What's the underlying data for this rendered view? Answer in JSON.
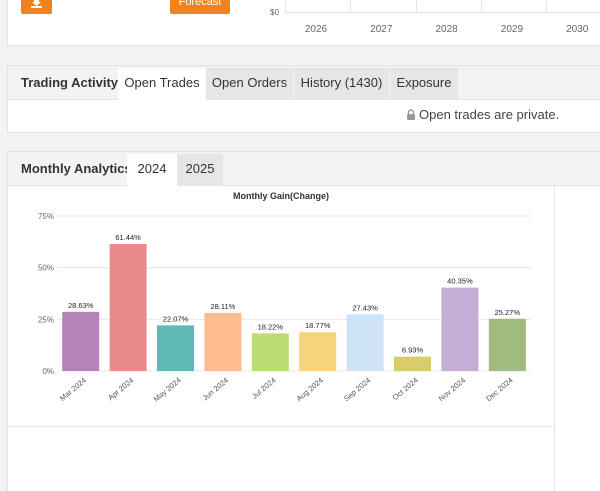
{
  "top": {
    "forecast_label": "Forecast",
    "y_label": "$0",
    "years": [
      "2026",
      "2027",
      "2028",
      "2029",
      "2030"
    ]
  },
  "trading": {
    "title": "Trading Activity",
    "tabs": [
      {
        "label": "Open Trades",
        "active": true
      },
      {
        "label": "Open Orders",
        "active": false
      },
      {
        "label": "History (1430)",
        "active": false
      },
      {
        "label": "Exposure",
        "active": false
      }
    ],
    "private_message": "Open trades are private."
  },
  "analytics": {
    "title": "Monthly Analytics",
    "tabs": [
      {
        "label": "2024",
        "active": true
      },
      {
        "label": "2025",
        "active": false
      }
    ]
  },
  "colors": {
    "accent": "#f0811c",
    "bars": [
      "#b583b8",
      "#e88a8a",
      "#5fb8b5",
      "#ffbb8f",
      "#bddc72",
      "#f6d57a",
      "#cfe3f6",
      "#d7cd6e",
      "#c5aed6",
      "#9fbb7f"
    ]
  },
  "chart_data": {
    "type": "bar",
    "title": "Monthly Gain(Change)",
    "categories": [
      "Mar 2024",
      "Apr 2024",
      "May 2024",
      "Jun 2024",
      "Jul 2024",
      "Aug 2024",
      "Sep 2024",
      "Oct 2024",
      "Nov 2024",
      "Dec 2024"
    ],
    "values": [
      28.63,
      61.44,
      22.07,
      28.11,
      18.22,
      18.77,
      27.43,
      6.93,
      40.35,
      25.27
    ],
    "value_labels": [
      "28.63%",
      "61.44%",
      "22.07%",
      "28.11%",
      "18.22%",
      "18.77%",
      "27.43%",
      "6.93%",
      "40.35%",
      "25.27%"
    ],
    "y_ticks": [
      "0%",
      "25%",
      "50%",
      "75%"
    ],
    "ylim": [
      0,
      75
    ],
    "grid": true
  }
}
